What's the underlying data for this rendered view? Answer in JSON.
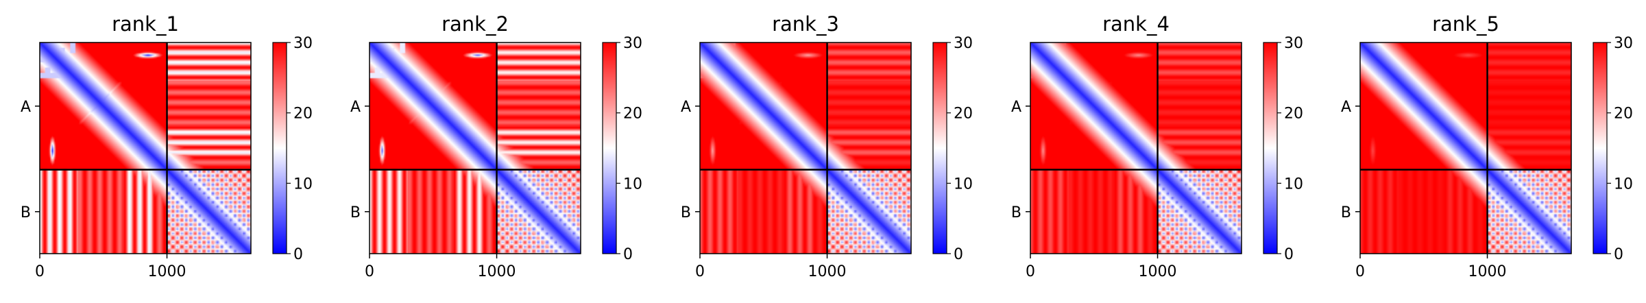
{
  "chart_data": {
    "type": "heatmap",
    "colormap": {
      "low_color": "#0000ff",
      "mid_color": "#ffffff",
      "high_color": "#ff0000",
      "vmin": 0,
      "vmax": 30,
      "ticks": [
        "0",
        "10",
        "20",
        "30"
      ]
    },
    "x_range": [
      0,
      1660
    ],
    "y_range": [
      0,
      1660
    ],
    "x_ticks": [
      {
        "value": 0,
        "label": "0"
      },
      {
        "value": 1000,
        "label": "1000"
      }
    ],
    "chain_boundary": 1000,
    "y_labels": [
      {
        "center": 500,
        "label": "A"
      },
      {
        "center": 1330,
        "label": "B"
      }
    ],
    "panels": [
      {
        "title": "rank_1",
        "offdiag_strength": 1.0
      },
      {
        "title": "rank_2",
        "offdiag_strength": 0.9
      },
      {
        "title": "rank_3",
        "offdiag_strength": 0.35
      },
      {
        "title": "rank_4",
        "offdiag_strength": 0.3
      },
      {
        "title": "rank_5",
        "offdiag_strength": 0.15
      }
    ]
  }
}
